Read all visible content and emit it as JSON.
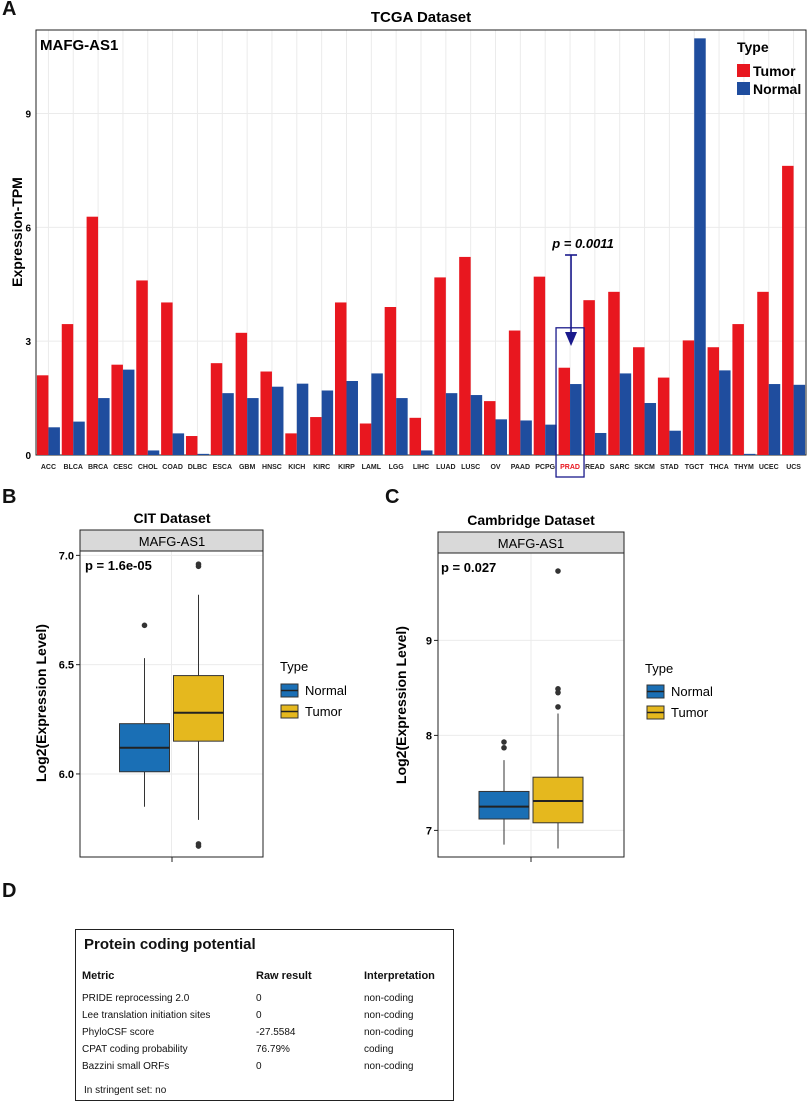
{
  "colors": {
    "tumor": "#e8171f",
    "normal": "#1f4d9e",
    "box_normal": "#1a6fb5",
    "box_tumor": "#e5b81e",
    "strip": "#d9d9d9",
    "highlight": "#e8171f",
    "arrow": "#1a1a8c"
  },
  "panels": {
    "a": "A",
    "b": "B",
    "c": "C",
    "d": "D"
  },
  "chart_data": [
    {
      "type": "bar",
      "title": "TCGA Dataset",
      "gene": "MAFG-AS1",
      "ylabel": "Expression-TPM",
      "xlabel": "",
      "ylim": [
        0,
        11.2
      ],
      "yticks": [
        0,
        3,
        6,
        9
      ],
      "legend": {
        "title": "Type",
        "position": "top-right"
      },
      "categories": [
        "ACC",
        "BLCA",
        "BRCA",
        "CESC",
        "CHOL",
        "COAD",
        "DLBC",
        "ESCA",
        "GBM",
        "HNSC",
        "KICH",
        "KIRC",
        "KIRP",
        "LAML",
        "LGG",
        "LIHC",
        "LUAD",
        "LUSC",
        "OV",
        "PAAD",
        "PCPG",
        "PRAD",
        "READ",
        "SARC",
        "SKCM",
        "STAD",
        "TGCT",
        "THCA",
        "THYM",
        "UCEC",
        "UCS"
      ],
      "series": [
        {
          "name": "Tumor",
          "values": [
            2.1,
            3.45,
            6.28,
            2.38,
            4.6,
            4.02,
            0.5,
            2.42,
            3.22,
            2.2,
            0.57,
            1.0,
            4.02,
            0.83,
            3.9,
            0.98,
            4.68,
            5.22,
            1.42,
            3.28,
            4.7,
            2.3,
            4.08,
            4.3,
            2.84,
            2.04,
            3.02,
            2.84,
            3.45,
            4.3,
            7.62
          ]
        },
        {
          "name": "Normal",
          "values": [
            0.73,
            0.88,
            1.5,
            2.25,
            0.12,
            0.57,
            0.03,
            1.63,
            1.5,
            1.8,
            1.88,
            1.7,
            1.95,
            2.15,
            1.5,
            0.12,
            1.63,
            1.58,
            0.94,
            0.91,
            0.8,
            1.87,
            0.58,
            2.15,
            1.37,
            0.64,
            10.98,
            2.23,
            0.03,
            1.87,
            1.85
          ]
        }
      ],
      "highlight": {
        "category": "PRAD",
        "label": "p = 0.0011"
      }
    },
    {
      "type": "box",
      "title": "CIT Dataset",
      "strip": "MAFG-AS1",
      "ylabel": "Log2(Expression Level)",
      "ylim": [
        5.62,
        7.02
      ],
      "yticks": [
        6.0,
        6.5,
        7.0
      ],
      "annotation": "p = 1.6e-05",
      "legend": {
        "title": "Type",
        "position": "right"
      },
      "series": [
        {
          "name": "Normal",
          "min": 5.85,
          "q1": 6.01,
          "median": 6.12,
          "q3": 6.23,
          "max": 6.53,
          "outliers": [
            6.68
          ]
        },
        {
          "name": "Tumor",
          "min": 5.79,
          "q1": 6.15,
          "median": 6.28,
          "q3": 6.45,
          "max": 6.82,
          "outliers": [
            6.95,
            6.96,
            5.67,
            5.68
          ]
        }
      ]
    },
    {
      "type": "box",
      "title": "Cambridge Dataset",
      "strip": "MAFG-AS1",
      "ylabel": "Log2(Expression Level)",
      "ylim": [
        6.72,
        9.92
      ],
      "yticks": [
        7,
        8,
        9
      ],
      "annotation": "p = 0.027",
      "legend": {
        "title": "Type",
        "position": "right"
      },
      "series": [
        {
          "name": "Normal",
          "min": 6.85,
          "q1": 7.12,
          "median": 7.25,
          "q3": 7.41,
          "max": 7.74,
          "outliers": [
            7.87,
            7.93
          ]
        },
        {
          "name": "Tumor",
          "min": 6.81,
          "q1": 7.08,
          "median": 7.31,
          "q3": 7.56,
          "max": 8.23,
          "outliers": [
            8.3,
            8.45,
            8.49,
            9.73
          ]
        }
      ]
    },
    {
      "type": "table",
      "title": "Protein coding potential",
      "columns": [
        "Metric",
        "Raw result",
        "Interpretation"
      ],
      "rows": [
        [
          "PRIDE reprocessing 2.0",
          "0",
          "non-coding"
        ],
        [
          "Lee translation initiation sites",
          "0",
          "non-coding"
        ],
        [
          "PhyloCSF score",
          "-27.5584",
          "non-coding"
        ],
        [
          "CPAT coding probability",
          "76.79%",
          "coding"
        ],
        [
          "Bazzini small ORFs",
          "0",
          "non-coding"
        ]
      ],
      "footer": "In stringent set: no"
    }
  ]
}
